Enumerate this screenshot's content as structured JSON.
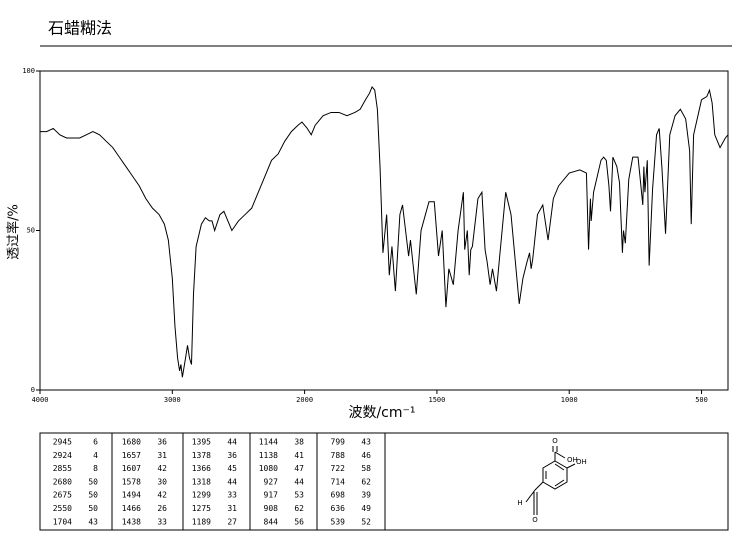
{
  "chart_data": {
    "type": "line",
    "title": "石蜡糊法",
    "x_label": "波数/cm⁻¹",
    "y_label": "透过率/%",
    "xlim": [
      4000,
      400
    ],
    "xticks": [
      4000,
      3000,
      2000,
      1500,
      1000,
      500
    ],
    "x_scale_break": 2000,
    "ylim": [
      0,
      100
    ],
    "yticks": [
      0,
      50,
      100
    ],
    "color": "#000000",
    "x": [
      4000,
      3950,
      3900,
      3850,
      3800,
      3750,
      3700,
      3650,
      3600,
      3550,
      3500,
      3450,
      3400,
      3350,
      3300,
      3250,
      3200,
      3150,
      3100,
      3060,
      3030,
      3000,
      2980,
      2960,
      2945,
      2935,
      2924,
      2900,
      2885,
      2870,
      2855,
      2840,
      2820,
      2780,
      2750,
      2720,
      2700,
      2680,
      2640,
      2610,
      2580,
      2550,
      2500,
      2450,
      2400,
      2350,
      2300,
      2250,
      2200,
      2150,
      2100,
      2050,
      2020,
      1990,
      1975,
      1960,
      1930,
      1900,
      1870,
      1840,
      1810,
      1790,
      1770,
      1755,
      1745,
      1735,
      1725,
      1715,
      1704,
      1690,
      1680,
      1670,
      1657,
      1640,
      1630,
      1607,
      1600,
      1578,
      1560,
      1530,
      1510,
      1494,
      1480,
      1466,
      1455,
      1438,
      1420,
      1400,
      1395,
      1385,
      1378,
      1372,
      1366,
      1345,
      1330,
      1318,
      1310,
      1299,
      1290,
      1275,
      1265,
      1240,
      1220,
      1189,
      1175,
      1160,
      1150,
      1144,
      1138,
      1120,
      1100,
      1080,
      1060,
      1040,
      1000,
      960,
      935,
      927,
      920,
      917,
      908,
      880,
      870,
      860,
      850,
      844,
      835,
      820,
      810,
      799,
      795,
      788,
      775,
      760,
      740,
      722,
      718,
      714,
      705,
      698,
      685,
      670,
      660,
      650,
      636,
      620,
      600,
      580,
      560,
      545,
      539,
      530,
      500,
      480,
      470,
      460,
      450,
      430,
      410,
      400
    ],
    "values": [
      81,
      81,
      82,
      80,
      79,
      79,
      79,
      80,
      81,
      80,
      78,
      76,
      73,
      70,
      67,
      64,
      60,
      57,
      55,
      52,
      47,
      35,
      20,
      10,
      6,
      8,
      4,
      10,
      14,
      10,
      8,
      30,
      45,
      52,
      54,
      53,
      53,
      50,
      55,
      56,
      53,
      50,
      53,
      55,
      57,
      62,
      67,
      72,
      74,
      78,
      81,
      83,
      84,
      82,
      80,
      83,
      86,
      87,
      87,
      86,
      87,
      88,
      91,
      93,
      95,
      94,
      88,
      70,
      43,
      55,
      36,
      45,
      31,
      55,
      58,
      42,
      47,
      30,
      50,
      59,
      59,
      42,
      50,
      26,
      38,
      33,
      50,
      62,
      44,
      50,
      36,
      44,
      45,
      60,
      62,
      44,
      40,
      33,
      38,
      31,
      40,
      62,
      55,
      27,
      35,
      40,
      43,
      38,
      41,
      55,
      58,
      47,
      60,
      64,
      68,
      69,
      68,
      44,
      60,
      53,
      62,
      72,
      73,
      72,
      64,
      56,
      73,
      70,
      65,
      43,
      50,
      46,
      66,
      73,
      73,
      58,
      70,
      62,
      72,
      39,
      63,
      80,
      82,
      70,
      49,
      80,
      86,
      88,
      85,
      75,
      52,
      80,
      91,
      92,
      94,
      90,
      80,
      76,
      79,
      80
    ]
  },
  "peak_table": [
    [
      [
        2945,
        6
      ],
      [
        2924,
        4
      ],
      [
        2855,
        8
      ],
      [
        2680,
        50
      ],
      [
        2675,
        50
      ],
      [
        2550,
        50
      ],
      [
        1704,
        43
      ]
    ],
    [
      [
        1680,
        36
      ],
      [
        1657,
        31
      ],
      [
        1607,
        42
      ],
      [
        1578,
        30
      ],
      [
        1494,
        42
      ],
      [
        1466,
        26
      ],
      [
        1438,
        33
      ]
    ],
    [
      [
        1395,
        44
      ],
      [
        1378,
        36
      ],
      [
        1366,
        45
      ],
      [
        1318,
        44
      ],
      [
        1299,
        33
      ],
      [
        1275,
        31
      ],
      [
        1189,
        27
      ]
    ],
    [
      [
        1144,
        38
      ],
      [
        1138,
        41
      ],
      [
        1080,
        47
      ],
      [
        927,
        44
      ],
      [
        917,
        53
      ],
      [
        908,
        62
      ],
      [
        844,
        56
      ]
    ],
    [
      [
        799,
        43
      ],
      [
        788,
        46
      ],
      [
        722,
        58
      ],
      [
        714,
        62
      ],
      [
        698,
        39
      ],
      [
        636,
        49
      ],
      [
        539,
        52
      ]
    ]
  ],
  "structure": {
    "labels": [
      "O",
      "OH",
      "OH",
      "H",
      "O"
    ]
  }
}
